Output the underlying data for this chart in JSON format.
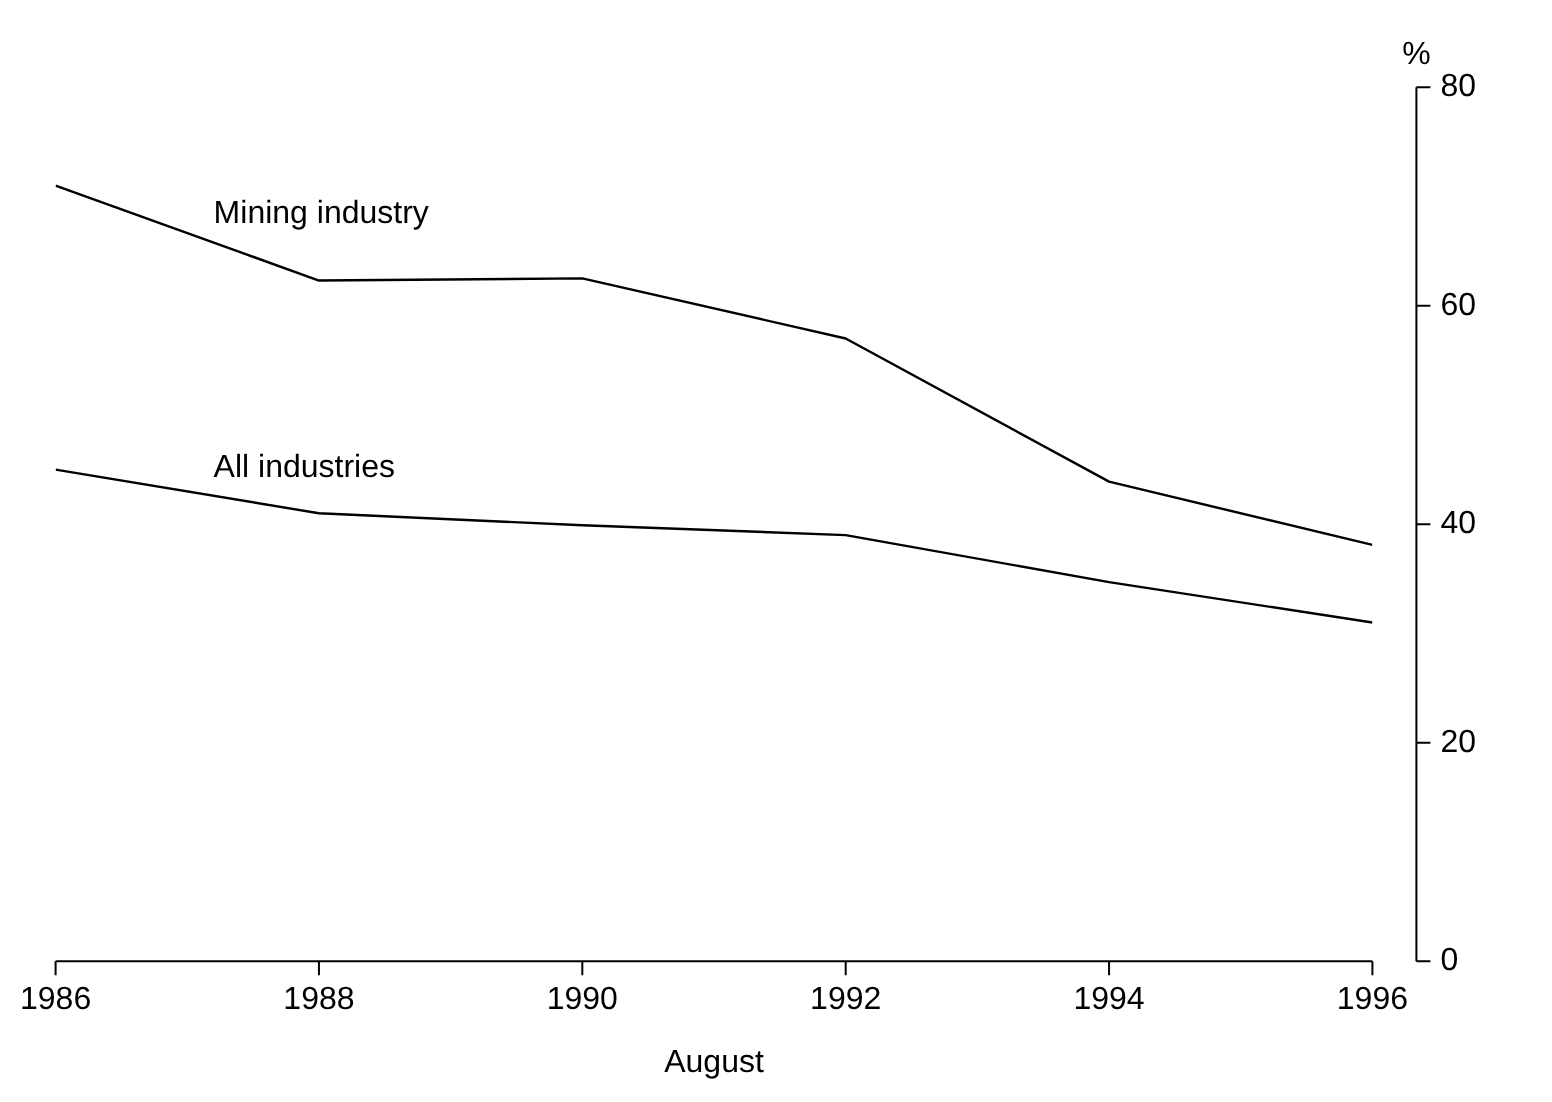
{
  "chart_data": {
    "type": "line",
    "xlabel": "August",
    "ylabel": "%",
    "x": [
      1986,
      1988,
      1990,
      1992,
      1994,
      1996
    ],
    "series": [
      {
        "name": "Mining industry",
        "color": "#000000",
        "values": [
          71.0,
          62.3,
          62.5,
          57.0,
          43.9,
          38.1
        ]
      },
      {
        "name": "All industries",
        "color": "#000000",
        "values": [
          45.0,
          41.0,
          39.9,
          39.0,
          34.7,
          31.0
        ]
      }
    ],
    "xlim": [
      1986,
      1996
    ],
    "xticks": [
      1986,
      1988,
      1990,
      1992,
      1994,
      1996
    ],
    "ylim": [
      0,
      80
    ],
    "yticks": [
      0,
      20,
      40,
      60,
      80
    ],
    "grid": false,
    "legend": false,
    "marker": "none",
    "line_style": "solid"
  }
}
